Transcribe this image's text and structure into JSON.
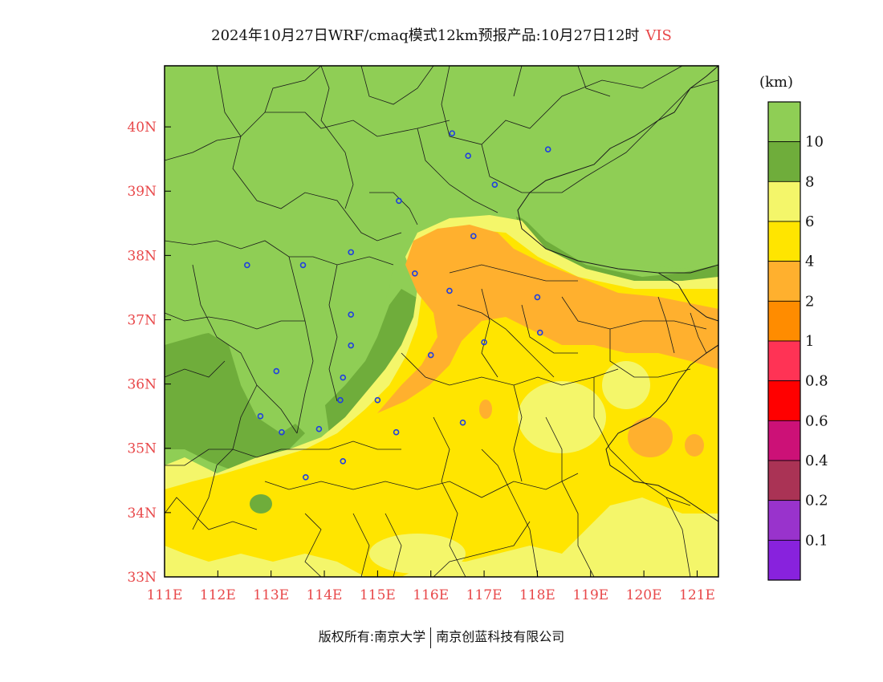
{
  "title": {
    "main": "2024年10月27日WRF/cmaq模式12km预报产品:10月27日12时",
    "variable": "VIS"
  },
  "colorbar": {
    "unit": "(km)",
    "levels": [
      {
        "label": "",
        "color": "#8fce55"
      },
      {
        "label": "10",
        "color": "#6fad3b"
      },
      {
        "label": "8",
        "color": "#f4f66a"
      },
      {
        "label": "6",
        "color": "#ffe500"
      },
      {
        "label": "4",
        "color": "#ffb02e"
      },
      {
        "label": "2",
        "color": "#ff8c00"
      },
      {
        "label": "1",
        "color": "#ff3355"
      },
      {
        "label": "0.8",
        "color": "#ff0000"
      },
      {
        "label": "0.6",
        "color": "#cc1177"
      },
      {
        "label": "0.4",
        "color": "#aa3355"
      },
      {
        "label": "0.2",
        "color": "#9933cc"
      },
      {
        "label": "0.1",
        "color": "#8822dd"
      }
    ]
  },
  "map": {
    "lon_range": [
      111.0,
      121.4
    ],
    "lat_range": [
      33.0,
      40.95
    ],
    "lon_ticks": [
      "111E",
      "112E",
      "113E",
      "114E",
      "115E",
      "116E",
      "117E",
      "118E",
      "119E",
      "120E",
      "121E"
    ],
    "lat_ticks": [
      "33N",
      "34N",
      "35N",
      "36N",
      "37N",
      "38N",
      "39N",
      "40N"
    ],
    "stations": [
      {
        "lon": 116.4,
        "lat": 39.9
      },
      {
        "lon": 117.2,
        "lat": 39.1
      },
      {
        "lon": 118.2,
        "lat": 39.65
      },
      {
        "lon": 116.7,
        "lat": 39.55
      },
      {
        "lon": 115.4,
        "lat": 38.85
      },
      {
        "lon": 116.8,
        "lat": 38.3
      },
      {
        "lon": 114.5,
        "lat": 38.05
      },
      {
        "lon": 112.55,
        "lat": 37.85
      },
      {
        "lon": 113.6,
        "lat": 37.85
      },
      {
        "lon": 115.7,
        "lat": 37.72
      },
      {
        "lon": 116.35,
        "lat": 37.45
      },
      {
        "lon": 118.0,
        "lat": 37.35
      },
      {
        "lon": 114.5,
        "lat": 37.08
      },
      {
        "lon": 118.05,
        "lat": 36.8
      },
      {
        "lon": 117.0,
        "lat": 36.65
      },
      {
        "lon": 114.5,
        "lat": 36.6
      },
      {
        "lon": 116.0,
        "lat": 36.45
      },
      {
        "lon": 113.1,
        "lat": 36.2
      },
      {
        "lon": 114.35,
        "lat": 36.1
      },
      {
        "lon": 114.3,
        "lat": 35.75
      },
      {
        "lon": 115.0,
        "lat": 35.75
      },
      {
        "lon": 112.8,
        "lat": 35.5
      },
      {
        "lon": 116.6,
        "lat": 35.4
      },
      {
        "lon": 113.9,
        "lat": 35.3
      },
      {
        "lon": 113.2,
        "lat": 35.25
      },
      {
        "lon": 115.35,
        "lat": 35.25
      },
      {
        "lon": 114.35,
        "lat": 34.8
      },
      {
        "lon": 113.65,
        "lat": 34.55
      }
    ]
  },
  "copyright": {
    "left": "版权所有:南京大学",
    "right": "南京创蓝科技有限公司"
  }
}
